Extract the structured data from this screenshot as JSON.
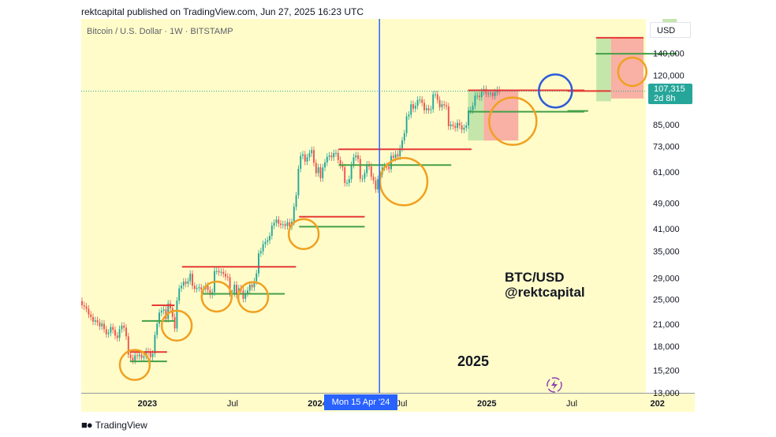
{
  "header": {
    "published_line": "rektcapital published on TradingView.com, Jun 27, 2025 16:23 UTC"
  },
  "chart_data": {
    "type": "candlestick",
    "symbol_line": "Bitcoin / U.S. Dollar · 1W · BITSTAMP",
    "currency_button": "USD",
    "log_scale": true,
    "ylim": [
      13000,
      178000
    ],
    "price_ticks": [
      "140,000",
      "120,000",
      "85,000",
      "73,000",
      "61,000",
      "49,000",
      "41,000",
      "35,000",
      "29,000",
      "25,000",
      "21,000",
      "18,000",
      "15,200",
      "13,000"
    ],
    "price_tick_values": [
      140000,
      120000,
      85000,
      73000,
      61000,
      49000,
      41000,
      35000,
      29000,
      25000,
      21000,
      18000,
      15200,
      13000
    ],
    "time_ticks": [
      "2023",
      "Jul",
      "2024",
      "Jul",
      "2025",
      "Jul",
      "202"
    ],
    "time_tick_bold": [
      true,
      false,
      true,
      false,
      true,
      false,
      true
    ],
    "last_price": {
      "value": "107,315",
      "countdown": "2d 8h",
      "price": 107315
    },
    "crosshair_label": "Mon 15 Apr '24",
    "annotations": {
      "brand_line1": "BTC/USD",
      "brand_line2": "@rektcapital",
      "year_label": "2025"
    },
    "colors": {
      "background": "#fffcc9",
      "up": "#26a69a",
      "down": "#ef5350",
      "resistance": "#e53935",
      "support": "#43a047",
      "circle": "#f0a020",
      "highlight_circle": "#2f5bd8",
      "crosshair": "#2962ff",
      "red_zone": "#f7a8a0",
      "green_zone": "#bfe3a6"
    },
    "candles_close": [
      24000,
      23800,
      23400,
      22500,
      22100,
      21400,
      21600,
      21300,
      20700,
      21100,
      20300,
      19600,
      19800,
      20600,
      20200,
      19400,
      19100,
      20300,
      20800,
      20500,
      19300,
      17000,
      16600,
      16300,
      16900,
      16800,
      17000,
      16600,
      16800,
      17400,
      17300,
      16700,
      17100,
      19500,
      21100,
      22800,
      23100,
      23300,
      21800,
      24300,
      23500,
      22100,
      20400,
      24800,
      27000,
      27500,
      28300,
      27900,
      28400,
      29900,
      27500,
      26900,
      27100,
      27200,
      26800,
      26900,
      27500,
      26700,
      25800,
      26300,
      30500,
      30500,
      30200,
      30300,
      29900,
      29300,
      29200,
      26100,
      26100,
      27700,
      25800,
      27000,
      26600,
      25100,
      26100,
      26600,
      27700,
      27200,
      28400,
      30000,
      34500,
      35000,
      36800,
      37400,
      37800,
      39000,
      41900,
      42700,
      43700,
      42500,
      42100,
      42300,
      41800,
      42900,
      41600,
      43000,
      47800,
      51800,
      62400,
      68300,
      69000,
      65600,
      67600,
      69500,
      71100,
      65000,
      60500,
      63000,
      58400,
      62900,
      65200,
      67800,
      68400,
      67600,
      69600,
      69700,
      66300,
      64000,
      63000,
      56500,
      56500,
      58000,
      64100,
      67600,
      68500,
      66800,
      58200,
      58200,
      60500,
      64300,
      63400,
      59000,
      57500,
      54000,
      58000,
      60000,
      63000,
      63500,
      63300,
      62200,
      68300,
      67300,
      69000,
      68000,
      72000,
      76000,
      80000,
      90000,
      91000,
      98000,
      95000,
      97000,
      101000,
      101200,
      99000,
      94000,
      95300,
      94000,
      94600,
      105000,
      105000,
      101000,
      96000,
      98000,
      97300,
      96500,
      84000,
      85000,
      84200,
      83000,
      86000,
      84500,
      82000,
      83000,
      84500,
      93800,
      94000,
      97000,
      104000,
      104000,
      103000,
      107000,
      109000,
      105500,
      105700,
      106000,
      103800,
      106500,
      108400,
      107315
    ],
    "levels": [
      {
        "kind": "resistance",
        "from": 21.7,
        "to": 38.5,
        "price": 17300
      },
      {
        "kind": "support",
        "from": 21.7,
        "to": 38.5,
        "price": 16200
      },
      {
        "kind": "resistance",
        "from": 31.6,
        "to": 41.9,
        "price": 24000
      },
      {
        "kind": "support",
        "from": 27.1,
        "to": 41.9,
        "price": 21500
      },
      {
        "kind": "resistance",
        "from": 45.3,
        "to": 96.9,
        "price": 31400
      },
      {
        "kind": "support",
        "from": 54.2,
        "to": 91.8,
        "price": 26000
      },
      {
        "kind": "resistance",
        "from": 98.3,
        "to": 128,
        "price": 44600
      },
      {
        "kind": "support",
        "from": 98.3,
        "to": 128,
        "price": 41600
      },
      {
        "kind": "resistance",
        "from": 116.2,
        "to": 176.4,
        "price": 71500
      },
      {
        "kind": "support",
        "from": 116.2,
        "to": 167.2,
        "price": 64000
      },
      {
        "kind": "resistance",
        "from": 174.8,
        "to": 227.5,
        "price": 108000
      },
      {
        "kind": "support",
        "from": 174.8,
        "to": 227.5,
        "price": 93000
      },
      {
        "kind": "resistance",
        "from": 219.9,
        "to": 239.5,
        "price": 107500
      },
      {
        "kind": "support",
        "from": 219.9,
        "to": 229.2,
        "price": 93500
      },
      {
        "kind": "resistance",
        "from": 232.8,
        "to": 254.3,
        "price": 156000
      },
      {
        "kind": "support",
        "from": 232.6,
        "to": 269.4,
        "price": 139500
      }
    ],
    "zones": [
      {
        "kind": "green",
        "from": 174.8,
        "to": 181.9,
        "low": 76000,
        "high": 108000
      },
      {
        "kind": "red",
        "from": 181.9,
        "to": 197.6,
        "low": 76000,
        "high": 108000
      },
      {
        "kind": "green",
        "from": 232.9,
        "to": 239.6,
        "low": 100000,
        "high": 156000
      },
      {
        "kind": "red",
        "from": 239.6,
        "to": 254.3,
        "low": 102000,
        "high": 156000
      },
      {
        "kind": "green",
        "from": 262.9,
        "to": 269.4,
        "low": 160000,
        "high": 178000
      }
    ],
    "circles": [
      {
        "center": 23.9,
        "price": 15800,
        "radius": 19
      },
      {
        "center": 42.9,
        "price": 20800,
        "radius": 19
      },
      {
        "center": 61.0,
        "price": 25500,
        "radius": 19
      },
      {
        "center": 77.5,
        "price": 25400,
        "radius": 19
      },
      {
        "center": 100.4,
        "price": 39500,
        "radius": 19
      },
      {
        "center": 145.7,
        "price": 57000,
        "radius": 30
      },
      {
        "center": 195.1,
        "price": 87000,
        "radius": 30
      },
      {
        "center": 249.2,
        "price": 123000,
        "radius": 18
      }
    ],
    "highlight_circle": {
      "center": 214.4,
      "price": 107500,
      "radius": 21
    },
    "crosshair_index": 134.7,
    "last_price_line": 107315
  }
}
